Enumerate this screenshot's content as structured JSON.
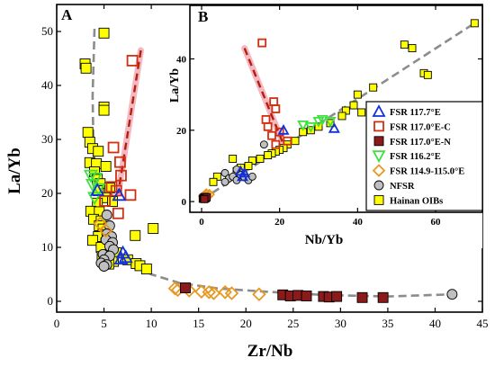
{
  "colors": {
    "yellow": "#ffff00",
    "gray": "#c0c0c0",
    "dark_red": "#8b1a1a",
    "red": "#d03010",
    "blue": "#1030e0",
    "green": "#40e040",
    "orange": "#e89820",
    "pink_trend": "#f4a6b0",
    "dashed_red": "#b02010",
    "dashed_gray": "#8c8c8c"
  },
  "chart_data": [
    {
      "panel": "A",
      "type": "scatter",
      "xlabel": "Zr/Nb",
      "ylabel": "La/Yb",
      "xlim": [
        0,
        45
      ],
      "ylim": [
        -2,
        55
      ],
      "xticks": [
        0,
        5,
        10,
        15,
        20,
        25,
        30,
        35,
        40,
        45
      ],
      "yticks": [
        0,
        10,
        20,
        30,
        40,
        50
      ],
      "series": [
        {
          "name": "Hainan OIBs",
          "marker": "square",
          "color": "yellow",
          "points": [
            [
              5.0,
              49.7
            ],
            [
              3.0,
              44.0
            ],
            [
              3.1,
              43.2
            ],
            [
              5.0,
              36.0
            ],
            [
              5.0,
              35.4
            ],
            [
              3.3,
              31.3
            ],
            [
              3.5,
              29.5
            ],
            [
              3.8,
              28.3
            ],
            [
              4.4,
              27.8
            ],
            [
              3.5,
              25.7
            ],
            [
              4.2,
              25.5
            ],
            [
              5.2,
              25.0
            ],
            [
              4.0,
              24.0
            ],
            [
              4.3,
              22.6
            ],
            [
              4.6,
              21.8
            ],
            [
              5.6,
              21.0
            ],
            [
              4.4,
              20.5
            ],
            [
              5.1,
              19.2
            ],
            [
              5.9,
              18.5
            ],
            [
              4.3,
              18.2
            ],
            [
              3.6,
              16.7
            ],
            [
              4.5,
              16.6
            ],
            [
              3.9,
              15.2
            ],
            [
              4.7,
              14.9
            ],
            [
              4.5,
              14.0
            ],
            [
              4.9,
              13.4
            ],
            [
              5.2,
              12.3
            ],
            [
              4.4,
              12.0
            ],
            [
              3.8,
              11.3
            ],
            [
              10.2,
              13.5
            ],
            [
              5.2,
              10.8
            ],
            [
              8.3,
              12.2
            ],
            [
              4.7,
              10.0
            ],
            [
              5.7,
              9.4
            ],
            [
              6.3,
              9.0
            ],
            [
              4.8,
              8.3
            ],
            [
              5.4,
              7.7
            ],
            [
              6.0,
              7.4
            ],
            [
              7.5,
              7.7
            ],
            [
              8.4,
              7.0
            ],
            [
              8.8,
              6.6
            ],
            [
              9.5,
              6.0
            ],
            [
              5.5,
              6.9
            ]
          ]
        },
        {
          "name": "NFSR",
          "marker": "circle",
          "color": "gray",
          "points": [
            [
              5.3,
              16.0
            ],
            [
              5.6,
              14.0
            ],
            [
              5.3,
              12.5
            ],
            [
              5.8,
              12.0
            ],
            [
              5.2,
              11.4
            ],
            [
              5.9,
              10.9
            ],
            [
              5.6,
              10.2
            ],
            [
              6.0,
              9.6
            ],
            [
              4.9,
              8.7
            ],
            [
              5.6,
              8.4
            ],
            [
              5.0,
              7.7
            ],
            [
              4.7,
              7.1
            ],
            [
              5.3,
              6.8
            ],
            [
              5.0,
              6.5
            ],
            [
              41.8,
              1.3
            ]
          ]
        },
        {
          "name": "FSR 114.9-115.0°E",
          "marker": "diamond",
          "color": "orange",
          "points": [
            [
              12.5,
              2.4
            ],
            [
              12.8,
              2.1
            ],
            [
              14.0,
              2.0
            ],
            [
              15.3,
              1.8
            ],
            [
              16.1,
              1.7
            ],
            [
              16.6,
              1.5
            ],
            [
              17.8,
              1.7
            ],
            [
              18.5,
              1.5
            ],
            [
              21.4,
              1.3
            ],
            [
              4.6,
              14.4
            ],
            [
              5.2,
              13.1
            ]
          ]
        },
        {
          "name": "FSR 117.0°E-N",
          "marker": "square",
          "color": "dark_red",
          "points": [
            [
              13.6,
              2.5
            ],
            [
              23.9,
              1.2
            ],
            [
              24.7,
              1.0
            ],
            [
              25.5,
              1.1
            ],
            [
              26.4,
              1.0
            ],
            [
              28.2,
              0.9
            ],
            [
              28.8,
              0.8
            ],
            [
              29.6,
              0.9
            ],
            [
              32.3,
              0.7
            ],
            [
              34.5,
              0.7
            ]
          ]
        },
        {
          "name": "FSR 117.0°E-C",
          "marker": "square-open",
          "color": "red",
          "points": [
            [
              8.0,
              44.6
            ],
            [
              6.0,
              28.5
            ],
            [
              6.7,
              25.8
            ],
            [
              6.8,
              23.3
            ],
            [
              5.8,
              21.2
            ],
            [
              6.3,
              20.5
            ],
            [
              7.8,
              19.7
            ],
            [
              5.1,
              18.6
            ],
            [
              6.5,
              16.3
            ]
          ]
        },
        {
          "name": "FSR 116.2°E",
          "marker": "triangle-down",
          "color": "green",
          "points": [
            [
              3.6,
              23.3
            ],
            [
              4.1,
              22.8
            ],
            [
              3.8,
              21.6
            ],
            [
              4.4,
              20.8
            ],
            [
              4.0,
              19.2
            ]
          ]
        },
        {
          "name": "FSR 117.7°E",
          "marker": "triangle-up",
          "color": "blue",
          "points": [
            [
              4.3,
              20.6
            ],
            [
              6.6,
              19.7
            ],
            [
              7.0,
              9.0
            ],
            [
              6.8,
              7.9
            ],
            [
              7.3,
              8.2
            ]
          ]
        }
      ],
      "trend_lines": [
        {
          "style": "gray-dashed",
          "points": [
            [
              4.0,
              50.5
            ],
            [
              3.8,
              38
            ],
            [
              3.9,
              27
            ],
            [
              4.4,
              20
            ],
            [
              5.1,
              14
            ],
            [
              6.2,
              10
            ],
            [
              8.0,
              6.8
            ],
            [
              10.0,
              5.0
            ],
            [
              13,
              3.4
            ],
            [
              17,
              2.4
            ],
            [
              22,
              1.8
            ],
            [
              28,
              1.2
            ],
            [
              35,
              0.9
            ],
            [
              41.8,
              1.3
            ]
          ]
        },
        {
          "style": "red-dashed-pink-band",
          "points": [
            [
              8.9,
              46.5
            ],
            [
              6.5,
              20
            ]
          ]
        }
      ]
    },
    {
      "panel": "B",
      "type": "scatter",
      "xlabel": "Nb/Yb",
      "ylabel": "La/Yb",
      "xlim": [
        -3,
        72
      ],
      "ylim": [
        -3,
        55
      ],
      "xticks": [
        0,
        20,
        40,
        60
      ],
      "yticks": [
        0,
        20,
        40
      ],
      "series": [
        {
          "name": "Hainan OIBs",
          "marker": "square",
          "color": "yellow",
          "points": [
            [
              70,
              50
            ],
            [
              52,
              44
            ],
            [
              54,
              43
            ],
            [
              57,
              36
            ],
            [
              58,
              35.5
            ],
            [
              44,
              32
            ],
            [
              40,
              30
            ],
            [
              39,
              27
            ],
            [
              37,
              25.5
            ],
            [
              41,
              25
            ],
            [
              36,
              24
            ],
            [
              33,
              22
            ],
            [
              30,
              21
            ],
            [
              28,
              20
            ],
            [
              26,
              19.5
            ],
            [
              24,
              17
            ],
            [
              22,
              16
            ],
            [
              21,
              15
            ],
            [
              20,
              14.5
            ],
            [
              19,
              14
            ],
            [
              18,
              13.5
            ],
            [
              17,
              13
            ],
            [
              15,
              12
            ],
            [
              13,
              11.5
            ],
            [
              12,
              10
            ],
            [
              10,
              9.5
            ],
            [
              9,
              8.5
            ],
            [
              8,
              12
            ],
            [
              4,
              7
            ],
            [
              3,
              5.5
            ]
          ]
        },
        {
          "name": "NFSR",
          "marker": "circle",
          "color": "gray",
          "points": [
            [
              6,
              8
            ],
            [
              7,
              6.5
            ],
            [
              8,
              7
            ],
            [
              9,
              6
            ],
            [
              10,
              7.5
            ],
            [
              11,
              6.8
            ],
            [
              12,
              6
            ],
            [
              13,
              7
            ],
            [
              9,
              9
            ],
            [
              6,
              5.5
            ],
            [
              16,
              16
            ]
          ]
        },
        {
          "name": "FSR 114.9-115.0°E",
          "marker": "diamond",
          "color": "orange",
          "points": [
            [
              0.5,
              1.5
            ],
            [
              1,
              1.7
            ],
            [
              1.5,
              1.4
            ],
            [
              2,
              2
            ],
            [
              1.2,
              2.2
            ],
            [
              0.8,
              1.0
            ]
          ]
        },
        {
          "name": "FSR 117.0°E-N",
          "marker": "square",
          "color": "dark_red",
          "points": [
            [
              0.3,
              0.8
            ],
            [
              0.5,
              1.1
            ],
            [
              0.8,
              1.3
            ],
            [
              1,
              0.9
            ],
            [
              1.3,
              1.2
            ],
            [
              0.7,
              0.7
            ]
          ]
        },
        {
          "name": "FSR 117.0°E-C",
          "marker": "square-open",
          "color": "red",
          "points": [
            [
              15.5,
              44.5
            ],
            [
              18.5,
              28
            ],
            [
              19,
              26
            ],
            [
              16.5,
              23
            ],
            [
              17,
              21
            ],
            [
              20,
              19.5
            ],
            [
              18,
              18.5
            ],
            [
              22,
              17
            ],
            [
              19,
              16
            ]
          ]
        },
        {
          "name": "FSR 116.2°E",
          "marker": "triangle-down",
          "color": "green",
          "points": [
            [
              26,
              21.5
            ],
            [
              28,
              21
            ],
            [
              30,
              22.5
            ],
            [
              31,
              23
            ],
            [
              33,
              22.5
            ]
          ]
        },
        {
          "name": "FSR 117.7°E",
          "marker": "triangle-up",
          "color": "blue",
          "points": [
            [
              10,
              8.5
            ],
            [
              11,
              8
            ],
            [
              21,
              20
            ],
            [
              34,
              20.5
            ],
            [
              10.5,
              7
            ]
          ]
        }
      ],
      "trend_lines": [
        {
          "style": "gray-dashed",
          "points": [
            [
              0,
              0.5
            ],
            [
              70,
              50
            ]
          ]
        },
        {
          "style": "red-dashed-pink-band",
          "points": [
            [
              11,
              43
            ],
            [
              21,
              16
            ]
          ]
        }
      ],
      "legend": {
        "placement": "right",
        "entries": [
          {
            "label": "FSR 117.7°E",
            "marker": "triangle-up",
            "color": "blue"
          },
          {
            "label": "FSR 117.0°E-C",
            "marker": "square-open",
            "color": "red"
          },
          {
            "label": "FSR 117.0°E-N",
            "marker": "square",
            "color": "dark_red"
          },
          {
            "label": "FSR 116.2°E",
            "marker": "triangle-down",
            "color": "green"
          },
          {
            "label": "FSR 114.9-115.0°E",
            "marker": "diamond",
            "color": "orange"
          },
          {
            "label": "NFSR",
            "marker": "circle",
            "color": "gray"
          },
          {
            "label": "Hainan OIBs",
            "marker": "square",
            "color": "yellow"
          }
        ]
      }
    }
  ]
}
